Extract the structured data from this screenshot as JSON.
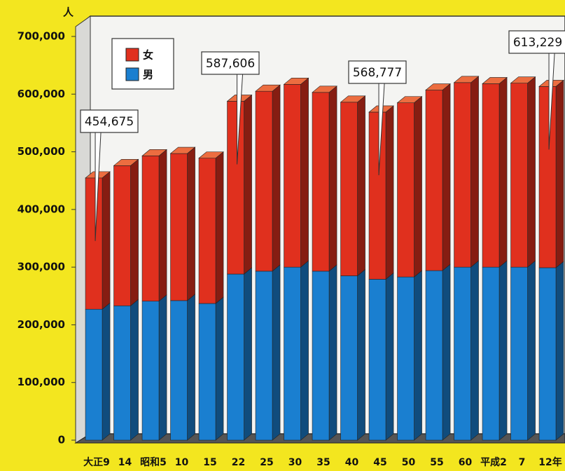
{
  "chart_data": {
    "type": "stacked_bar_3d",
    "unit_label": "人",
    "categories": [
      "大正9",
      "14",
      "昭和5",
      "10",
      "15",
      "22",
      "25",
      "30",
      "35",
      "40",
      "45",
      "50",
      "55",
      "60",
      "平成2",
      "7",
      "12年"
    ],
    "series": [
      {
        "name": "男",
        "color": "#1a7fd0",
        "values": [
          227000,
          233000,
          241000,
          242000,
          237000,
          288000,
          293000,
          300000,
          293000,
          285000,
          279000,
          283000,
          294000,
          300000,
          300000,
          300000,
          299000
        ]
      },
      {
        "name": "女",
        "color": "#e0301e",
        "values": [
          227675,
          243000,
          252000,
          255000,
          252000,
          299606,
          312000,
          317000,
          310000,
          301000,
          289777,
          302000,
          313000,
          320000,
          318000,
          319000,
          314229
        ]
      }
    ],
    "ylim": [
      0,
      700000
    ],
    "yticks": [
      0,
      {
        "value": 100000,
        "label": "100,000"
      },
      {
        "value": 200000,
        "label": "200,000"
      },
      {
        "value": 300000,
        "label": "300,000"
      },
      {
        "value": 400000,
        "label": "400,000"
      },
      {
        "value": 500000,
        "label": "500,000"
      },
      {
        "value": 600000,
        "label": "600,000"
      },
      {
        "value": 700000,
        "label": "700,000"
      }
    ],
    "annotations": [
      {
        "label": "454,675",
        "category": "大正9"
      },
      {
        "label": "587,606",
        "category": "22"
      },
      {
        "label": "568,777",
        "category": "45"
      },
      {
        "label": "613,229",
        "category": "12年"
      }
    ],
    "legend": "top-left"
  }
}
